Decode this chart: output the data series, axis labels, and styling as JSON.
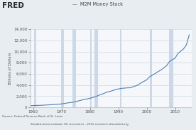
{
  "title": "M2M Money Stock",
  "ylabel": "Billions of Dollars",
  "source_text": "Source: Federal Reserve Bank of St. Louis",
  "footnote_text": "Shaded areas indicate US recessions - 2015 research.stlouisfed.org",
  "line_color": "#4d7fb5",
  "line_width": 0.8,
  "bg_color": "#e8edf2",
  "plot_bg_color": "#f5f7fa",
  "grid_color": "#d0d8e0",
  "shade_color": "#ccd8e8",
  "xmin": 1959,
  "xmax": 2016,
  "ymin": 0,
  "ymax": 14000,
  "yticks": [
    0,
    2000,
    4000,
    6000,
    8000,
    10000,
    12000,
    14000
  ],
  "xticks": [
    1960,
    1970,
    1980,
    1990,
    2000,
    2010
  ],
  "recession_bands": [
    [
      1960.3,
      1961.1
    ],
    [
      1969.9,
      1970.9
    ],
    [
      1973.9,
      1975.2
    ],
    [
      1980.0,
      1980.6
    ],
    [
      1981.6,
      1982.9
    ],
    [
      1990.6,
      1991.2
    ],
    [
      2001.2,
      2001.9
    ],
    [
      2007.9,
      2009.4
    ]
  ],
  "data_years": [
    1959,
    1960,
    1961,
    1962,
    1963,
    1964,
    1965,
    1966,
    1967,
    1968,
    1969,
    1970,
    1971,
    1972,
    1973,
    1974,
    1975,
    1976,
    1977,
    1978,
    1979,
    1980,
    1981,
    1982,
    1983,
    1984,
    1985,
    1986,
    1987,
    1988,
    1989,
    1990,
    1991,
    1992,
    1993,
    1994,
    1995,
    1996,
    1997,
    1998,
    1999,
    2000,
    2001,
    2002,
    2003,
    2004,
    2005,
    2006,
    2007,
    2008,
    2009,
    2010,
    2011,
    2012,
    2013,
    2014,
    2015
  ],
  "data_values": [
    286,
    302,
    318,
    336,
    358,
    385,
    415,
    440,
    477,
    519,
    554,
    601,
    672,
    770,
    845,
    902,
    1012,
    1152,
    1272,
    1399,
    1499,
    1597,
    1756,
    1910,
    2125,
    2310,
    2497,
    2732,
    2831,
    2995,
    3160,
    3280,
    3381,
    3430,
    3481,
    3498,
    3639,
    3820,
    4000,
    4378,
    4640,
    4930,
    5448,
    5775,
    6055,
    6390,
    6680,
    7060,
    7450,
    8180,
    8540,
    8800,
    9650,
    10060,
    10490,
    11200,
    13000
  ]
}
